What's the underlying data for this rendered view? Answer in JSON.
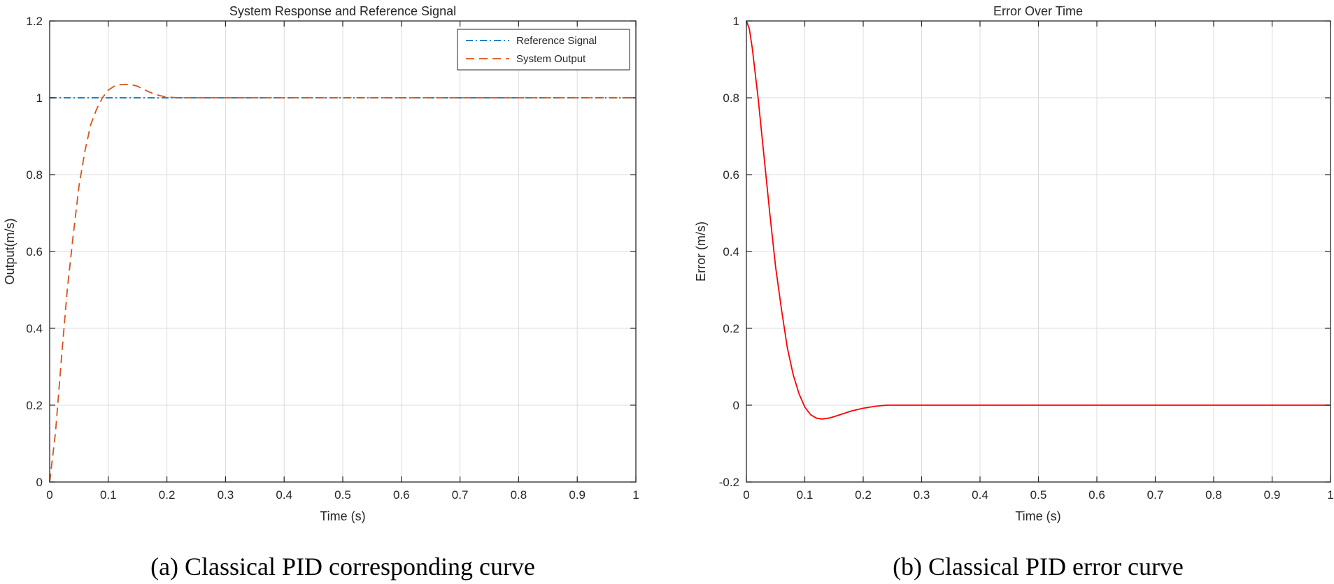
{
  "colors": {
    "reference": "#0072BD",
    "output": "#D95319",
    "error": "#FF0000",
    "grid": "#dcdcdc",
    "axis": "#262626"
  },
  "chart_data": [
    {
      "type": "line",
      "title": "System Response and Reference Signal",
      "xlabel": "Time (s)",
      "ylabel": "Output(m/s)",
      "caption": "(a) Classical PID corresponding curve",
      "xlim": [
        0,
        1
      ],
      "ylim": [
        0,
        1.2
      ],
      "xticks": [
        "0",
        "0.1",
        "0.2",
        "0.3",
        "0.4",
        "0.5",
        "0.6",
        "0.7",
        "0.8",
        "0.9",
        "1"
      ],
      "yticks": [
        "0",
        "0.2",
        "0.4",
        "0.6",
        "0.8",
        "1",
        "1.2"
      ],
      "grid": true,
      "legend": "top-right",
      "series": [
        {
          "name": "Reference Signal",
          "line_style": "dash-dot",
          "x": [
            0,
            1
          ],
          "y": [
            1,
            1
          ]
        },
        {
          "name": "System Output",
          "line_style": "dashed",
          "x": [
            0,
            0.01,
            0.02,
            0.03,
            0.04,
            0.05,
            0.06,
            0.07,
            0.08,
            0.09,
            0.1,
            0.11,
            0.12,
            0.13,
            0.14,
            0.15,
            0.16,
            0.17,
            0.18,
            0.19,
            0.2,
            0.22,
            0.25,
            0.3,
            0.4,
            0.5,
            0.6,
            0.7,
            0.8,
            0.9,
            1
          ],
          "y": [
            0,
            0.13,
            0.32,
            0.5,
            0.64,
            0.77,
            0.86,
            0.93,
            0.97,
            1.0,
            1.02,
            1.03,
            1.034,
            1.035,
            1.034,
            1.03,
            1.022,
            1.015,
            1.009,
            1.005,
            1.002,
            1.0,
            1.0,
            1.0,
            1.0,
            1.0,
            1.0,
            1.0,
            1.0,
            1.0,
            1.0
          ]
        }
      ]
    },
    {
      "type": "line",
      "title": "Error Over Time",
      "xlabel": "Time (s)",
      "ylabel": "Error (m/s)",
      "caption": "(b) Classical PID error curve",
      "xlim": [
        0,
        1
      ],
      "ylim": [
        -0.2,
        1
      ],
      "xticks": [
        "0",
        "0.1",
        "0.2",
        "0.3",
        "0.4",
        "0.5",
        "0.6",
        "0.7",
        "0.8",
        "0.9",
        "1"
      ],
      "yticks": [
        "-0.2",
        "0",
        "0.2",
        "0.4",
        "0.6",
        "0.8",
        "1"
      ],
      "grid": true,
      "series": [
        {
          "line_style": "solid",
          "x": [
            0,
            0.005,
            0.01,
            0.02,
            0.03,
            0.04,
            0.05,
            0.06,
            0.07,
            0.08,
            0.09,
            0.1,
            0.11,
            0.12,
            0.13,
            0.14,
            0.15,
            0.16,
            0.17,
            0.18,
            0.2,
            0.22,
            0.24,
            0.27,
            0.3,
            0.35,
            0.4,
            0.5,
            0.6,
            0.7,
            0.8,
            0.9,
            1
          ],
          "y": [
            1.0,
            0.98,
            0.93,
            0.8,
            0.65,
            0.5,
            0.36,
            0.25,
            0.15,
            0.08,
            0.03,
            -0.005,
            -0.025,
            -0.034,
            -0.036,
            -0.034,
            -0.03,
            -0.025,
            -0.02,
            -0.015,
            -0.008,
            -0.003,
            0.0,
            0.0,
            0.0,
            0.0,
            0.0,
            0.0,
            0.0,
            0.0,
            0.0,
            0.0,
            0.0
          ]
        }
      ]
    }
  ]
}
